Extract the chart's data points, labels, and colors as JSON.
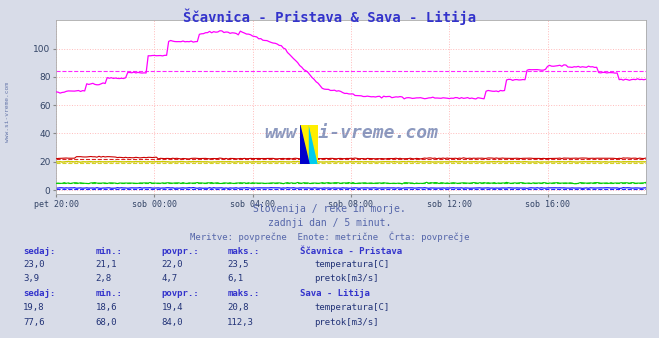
{
  "title": "Ščavnica - Pristava & Sava - Litija",
  "title_color": "#3333cc",
  "bg_color": "#d8dce8",
  "plot_bg_color": "#ffffff",
  "grid_color": "#ffbbbb",
  "grid_linestyle": ":",
  "xlabel_ticks": [
    "pet 20:00",
    "sob 00:00",
    "sob 04:00",
    "sob 08:00",
    "sob 12:00",
    "sob 16:00"
  ],
  "xlabel_ticks_pos": [
    0,
    48,
    96,
    144,
    192,
    240
  ],
  "yticks": [
    0,
    20,
    40,
    60,
    80,
    100
  ],
  "ylim": [
    -3,
    120
  ],
  "xlim": [
    0,
    288
  ],
  "subtitle1": "Slovenija / reke in morje.",
  "subtitle2": "zadnji dan / 5 minut.",
  "subtitle3": "Meritve: povprečne  Enote: metrične  Črta: povprečje",
  "subtitle_color": "#5566aa",
  "watermark": "www.si-vreme.com",
  "watermark_color": "#6677aa",
  "left_label": "www.si-vreme.com",
  "left_label_color": "#6677aa",
  "series": {
    "scavnica_temp": {
      "color": "#cc0000",
      "avg": 22.0,
      "min_val": 21.1,
      "max_val": 23.5,
      "current": 23.0
    },
    "scavnica_pretok": {
      "color": "#00cc00",
      "avg": 4.7,
      "min_val": 2.8,
      "max_val": 6.1,
      "current": 3.9
    },
    "sava_temp": {
      "color": "#cccc00",
      "avg": 19.4,
      "min_val": 18.6,
      "max_val": 20.8,
      "current": 19.8
    },
    "sava_pretok": {
      "color": "#ff00ff",
      "avg": 84.0,
      "min_val": 68.0,
      "max_val": 112.3,
      "current": 77.6
    },
    "height": {
      "color": "#0000ff",
      "avg": 1,
      "min_val": 0,
      "max_val": 2,
      "current": 1
    }
  },
  "legend_header_color": "#3333cc",
  "legend_value_color": "#223377",
  "table_headers": [
    "sedaj:",
    "min.:",
    "povpr.:",
    "maks.:"
  ],
  "scavnica_label": "Ščavnica - Pristava",
  "sava_label": "Sava - Litija",
  "temp_label": "temperatura[C]",
  "pretok_label": "pretok[m3/s]"
}
